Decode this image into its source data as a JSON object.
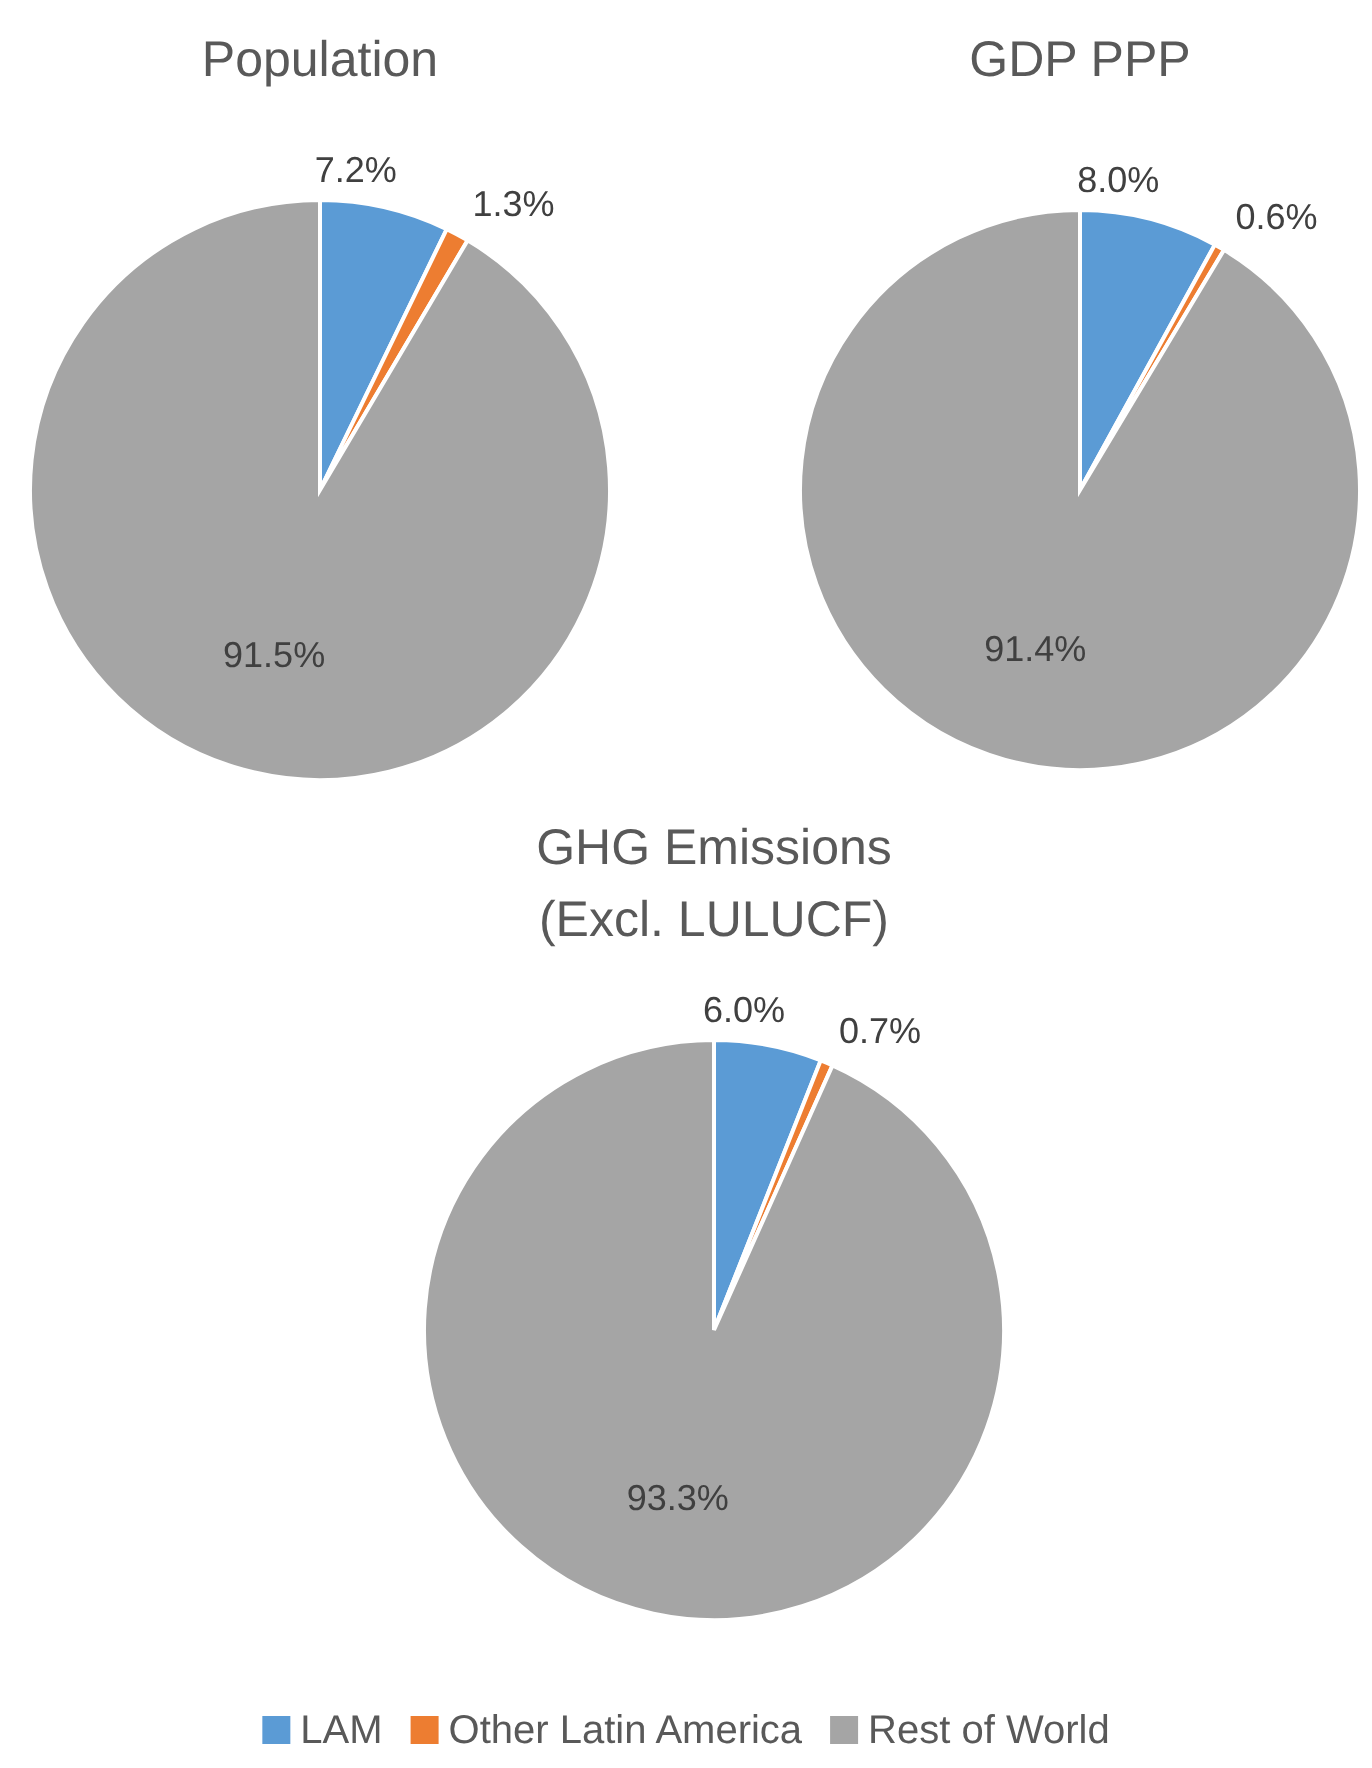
{
  "chart_data": [
    {
      "type": "pie",
      "title": "Population",
      "categories": [
        null,
        null,
        null
      ],
      "values": [
        7.2,
        1.3,
        91.5
      ],
      "value_labels": [
        "7.2%",
        "1.3%",
        "91.5%"
      ],
      "colors": [
        "#5b9bd5",
        "#ed7d31",
        "#a5a5a5"
      ],
      "legend": false
    },
    {
      "type": "pie",
      "title": "GDP PPP",
      "categories": [
        null,
        null,
        null
      ],
      "values": [
        8.0,
        0.6,
        91.4
      ],
      "value_labels": [
        "8.0%",
        "0.6%",
        "91.4%"
      ],
      "colors": [
        "#5b9bd5",
        "#ed7d31",
        "#a5a5a5"
      ],
      "legend": false
    },
    {
      "type": "pie",
      "title": "GHG Emissions\n(Excl. LULUCF)",
      "categories": [
        "LAM",
        "Other Latin America",
        "Rest of World"
      ],
      "values": [
        6.0,
        0.7,
        93.3
      ],
      "value_labels": [
        "6.0%",
        "0.7%",
        "93.3%"
      ],
      "colors": [
        "#5b9bd5",
        "#ed7d31",
        "#a5a5a5"
      ],
      "legend": "bottom"
    }
  ]
}
